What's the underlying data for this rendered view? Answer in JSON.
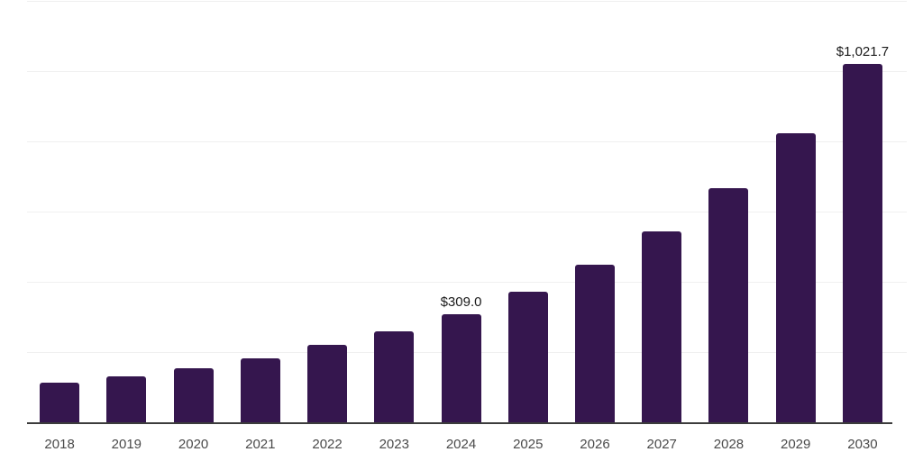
{
  "chart_data": {
    "type": "bar",
    "title": "",
    "xlabel": "",
    "ylabel": "",
    "categories": [
      "2018",
      "2019",
      "2020",
      "2021",
      "2022",
      "2023",
      "2024",
      "2025",
      "2026",
      "2027",
      "2028",
      "2029",
      "2030"
    ],
    "values": [
      112,
      131,
      155,
      182,
      220,
      259,
      309.0,
      372,
      449,
      544,
      667,
      822,
      1021.7
    ],
    "value_labels": [
      "",
      "",
      "",
      "",
      "",
      "",
      "$309.0",
      "",
      "",
      "",
      "",
      "",
      "$1,021.7"
    ],
    "value_prefix": "$",
    "ylim": [
      0,
      1200
    ],
    "gridline_step": 200,
    "grid": "horizontal",
    "legend": "none",
    "colors": {
      "bar": "#35164e",
      "gridline": "#f0f0f0",
      "axis_line": "#3c3c3c",
      "tick_label": "#4a4a4a",
      "value_label": "#1a1a1a",
      "background": "#ffffff"
    }
  }
}
